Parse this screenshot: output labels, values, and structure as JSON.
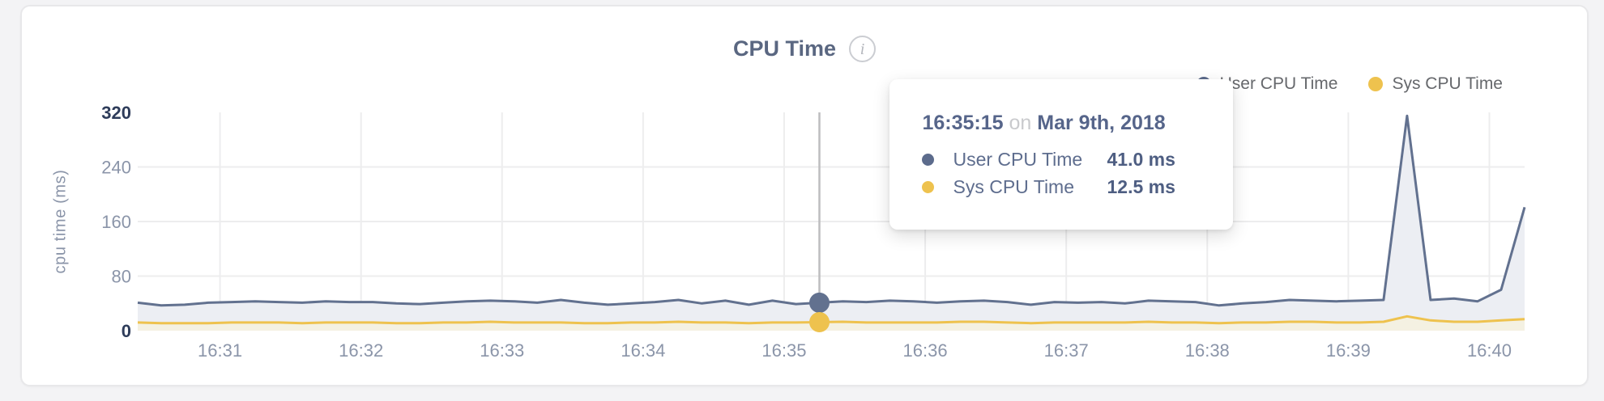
{
  "header": {
    "title": "CPU Time"
  },
  "legend": {
    "items": [
      {
        "label": "User CPU Time",
        "color": "#5c6b8c"
      },
      {
        "label": "Sys CPU Time",
        "color": "#eec24e"
      }
    ]
  },
  "tooltip": {
    "time": "16:35:15",
    "connector": "on",
    "date": "Mar 9th, 2018",
    "rows": [
      {
        "label": "User CPU Time",
        "value": "41.0 ms",
        "color": "#5c6b8c"
      },
      {
        "label": "Sys CPU Time",
        "value": "12.5 ms",
        "color": "#eec24e"
      }
    ]
  },
  "chart_data": {
    "type": "line",
    "title": "CPU Time",
    "ylabel": "cpu time (ms)",
    "ylim": [
      0,
      320
    ],
    "grid": true,
    "legend_position": "top-right",
    "grid_color": "#ededee",
    "tick_color": "#8b95a9",
    "tick_emphasis_color": "#2e3c5a",
    "y_ticks": [
      {
        "label": "320",
        "value": 320,
        "emphasized": true,
        "grid": false
      },
      {
        "label": "240",
        "value": 240,
        "emphasized": false,
        "grid": true
      },
      {
        "label": "160",
        "value": 160,
        "emphasized": false,
        "grid": true
      },
      {
        "label": "80",
        "value": 80,
        "emphasized": false,
        "grid": true
      },
      {
        "label": "0",
        "value": 0,
        "emphasized": true,
        "grid": false
      }
    ],
    "x_ticks": [
      {
        "label": "16:31",
        "time": "16:31:00"
      },
      {
        "label": "16:32",
        "time": "16:32:00"
      },
      {
        "label": "16:33",
        "time": "16:33:00"
      },
      {
        "label": "16:34",
        "time": "16:34:00"
      },
      {
        "label": "16:35",
        "time": "16:35:00"
      },
      {
        "label": "16:36",
        "time": "16:36:00"
      },
      {
        "label": "16:37",
        "time": "16:37:00"
      },
      {
        "label": "16:38",
        "time": "16:38:00"
      },
      {
        "label": "16:39",
        "time": "16:39:00"
      },
      {
        "label": "16:40",
        "time": "16:40:00"
      }
    ],
    "x_domain": [
      "16:30:25",
      "16:40:15"
    ],
    "times": [
      "16:30:25",
      "16:30:35",
      "16:30:45",
      "16:30:55",
      "16:31:05",
      "16:31:15",
      "16:31:25",
      "16:31:35",
      "16:31:45",
      "16:31:55",
      "16:32:05",
      "16:32:15",
      "16:32:25",
      "16:32:35",
      "16:32:45",
      "16:32:55",
      "16:33:05",
      "16:33:15",
      "16:33:25",
      "16:33:35",
      "16:33:45",
      "16:33:55",
      "16:34:05",
      "16:34:15",
      "16:34:25",
      "16:34:35",
      "16:34:45",
      "16:34:55",
      "16:35:05",
      "16:35:15",
      "16:35:25",
      "16:35:35",
      "16:35:45",
      "16:35:55",
      "16:36:05",
      "16:36:15",
      "16:36:25",
      "16:36:35",
      "16:36:45",
      "16:36:55",
      "16:37:05",
      "16:37:15",
      "16:37:25",
      "16:37:35",
      "16:37:45",
      "16:37:55",
      "16:38:05",
      "16:38:15",
      "16:38:25",
      "16:38:35",
      "16:38:45",
      "16:38:55",
      "16:39:05",
      "16:39:15",
      "16:39:25",
      "16:39:35",
      "16:39:45",
      "16:39:55",
      "16:40:05",
      "16:40:15"
    ],
    "series": [
      {
        "name": "User CPU Time",
        "unit": "ms",
        "color": "#62718f",
        "fill": "#eceef3",
        "values": [
          41,
          37,
          38,
          41,
          42,
          43,
          42,
          41,
          43,
          42,
          42,
          40,
          39,
          41,
          43,
          44,
          43,
          41,
          45,
          41,
          38,
          40,
          42,
          45,
          40,
          44,
          38,
          44,
          39,
          41,
          43,
          42,
          44,
          43,
          41,
          43,
          44,
          42,
          38,
          42,
          41,
          42,
          40,
          44,
          43,
          42,
          37,
          40,
          42,
          45,
          44,
          43,
          44,
          45,
          315,
          45,
          47,
          43,
          60,
          181
        ]
      },
      {
        "name": "Sys CPU Time",
        "unit": "ms",
        "color": "#eec24e",
        "fill": "#f4f1e2",
        "values": [
          12,
          11,
          11,
          11,
          12,
          12,
          12,
          11,
          12,
          12,
          12,
          11,
          11,
          12,
          12,
          13,
          12,
          12,
          12,
          11,
          11,
          12,
          12,
          13,
          12,
          12,
          11,
          12,
          12,
          12.5,
          13,
          12,
          12,
          12,
          12,
          13,
          13,
          12,
          11,
          12,
          12,
          12,
          12,
          13,
          12,
          12,
          11,
          12,
          12,
          13,
          13,
          12,
          12,
          13,
          21,
          15,
          13,
          13,
          15,
          17
        ]
      }
    ],
    "hover": {
      "time": "16:35:15",
      "line_color": "#bdbdbf"
    }
  }
}
